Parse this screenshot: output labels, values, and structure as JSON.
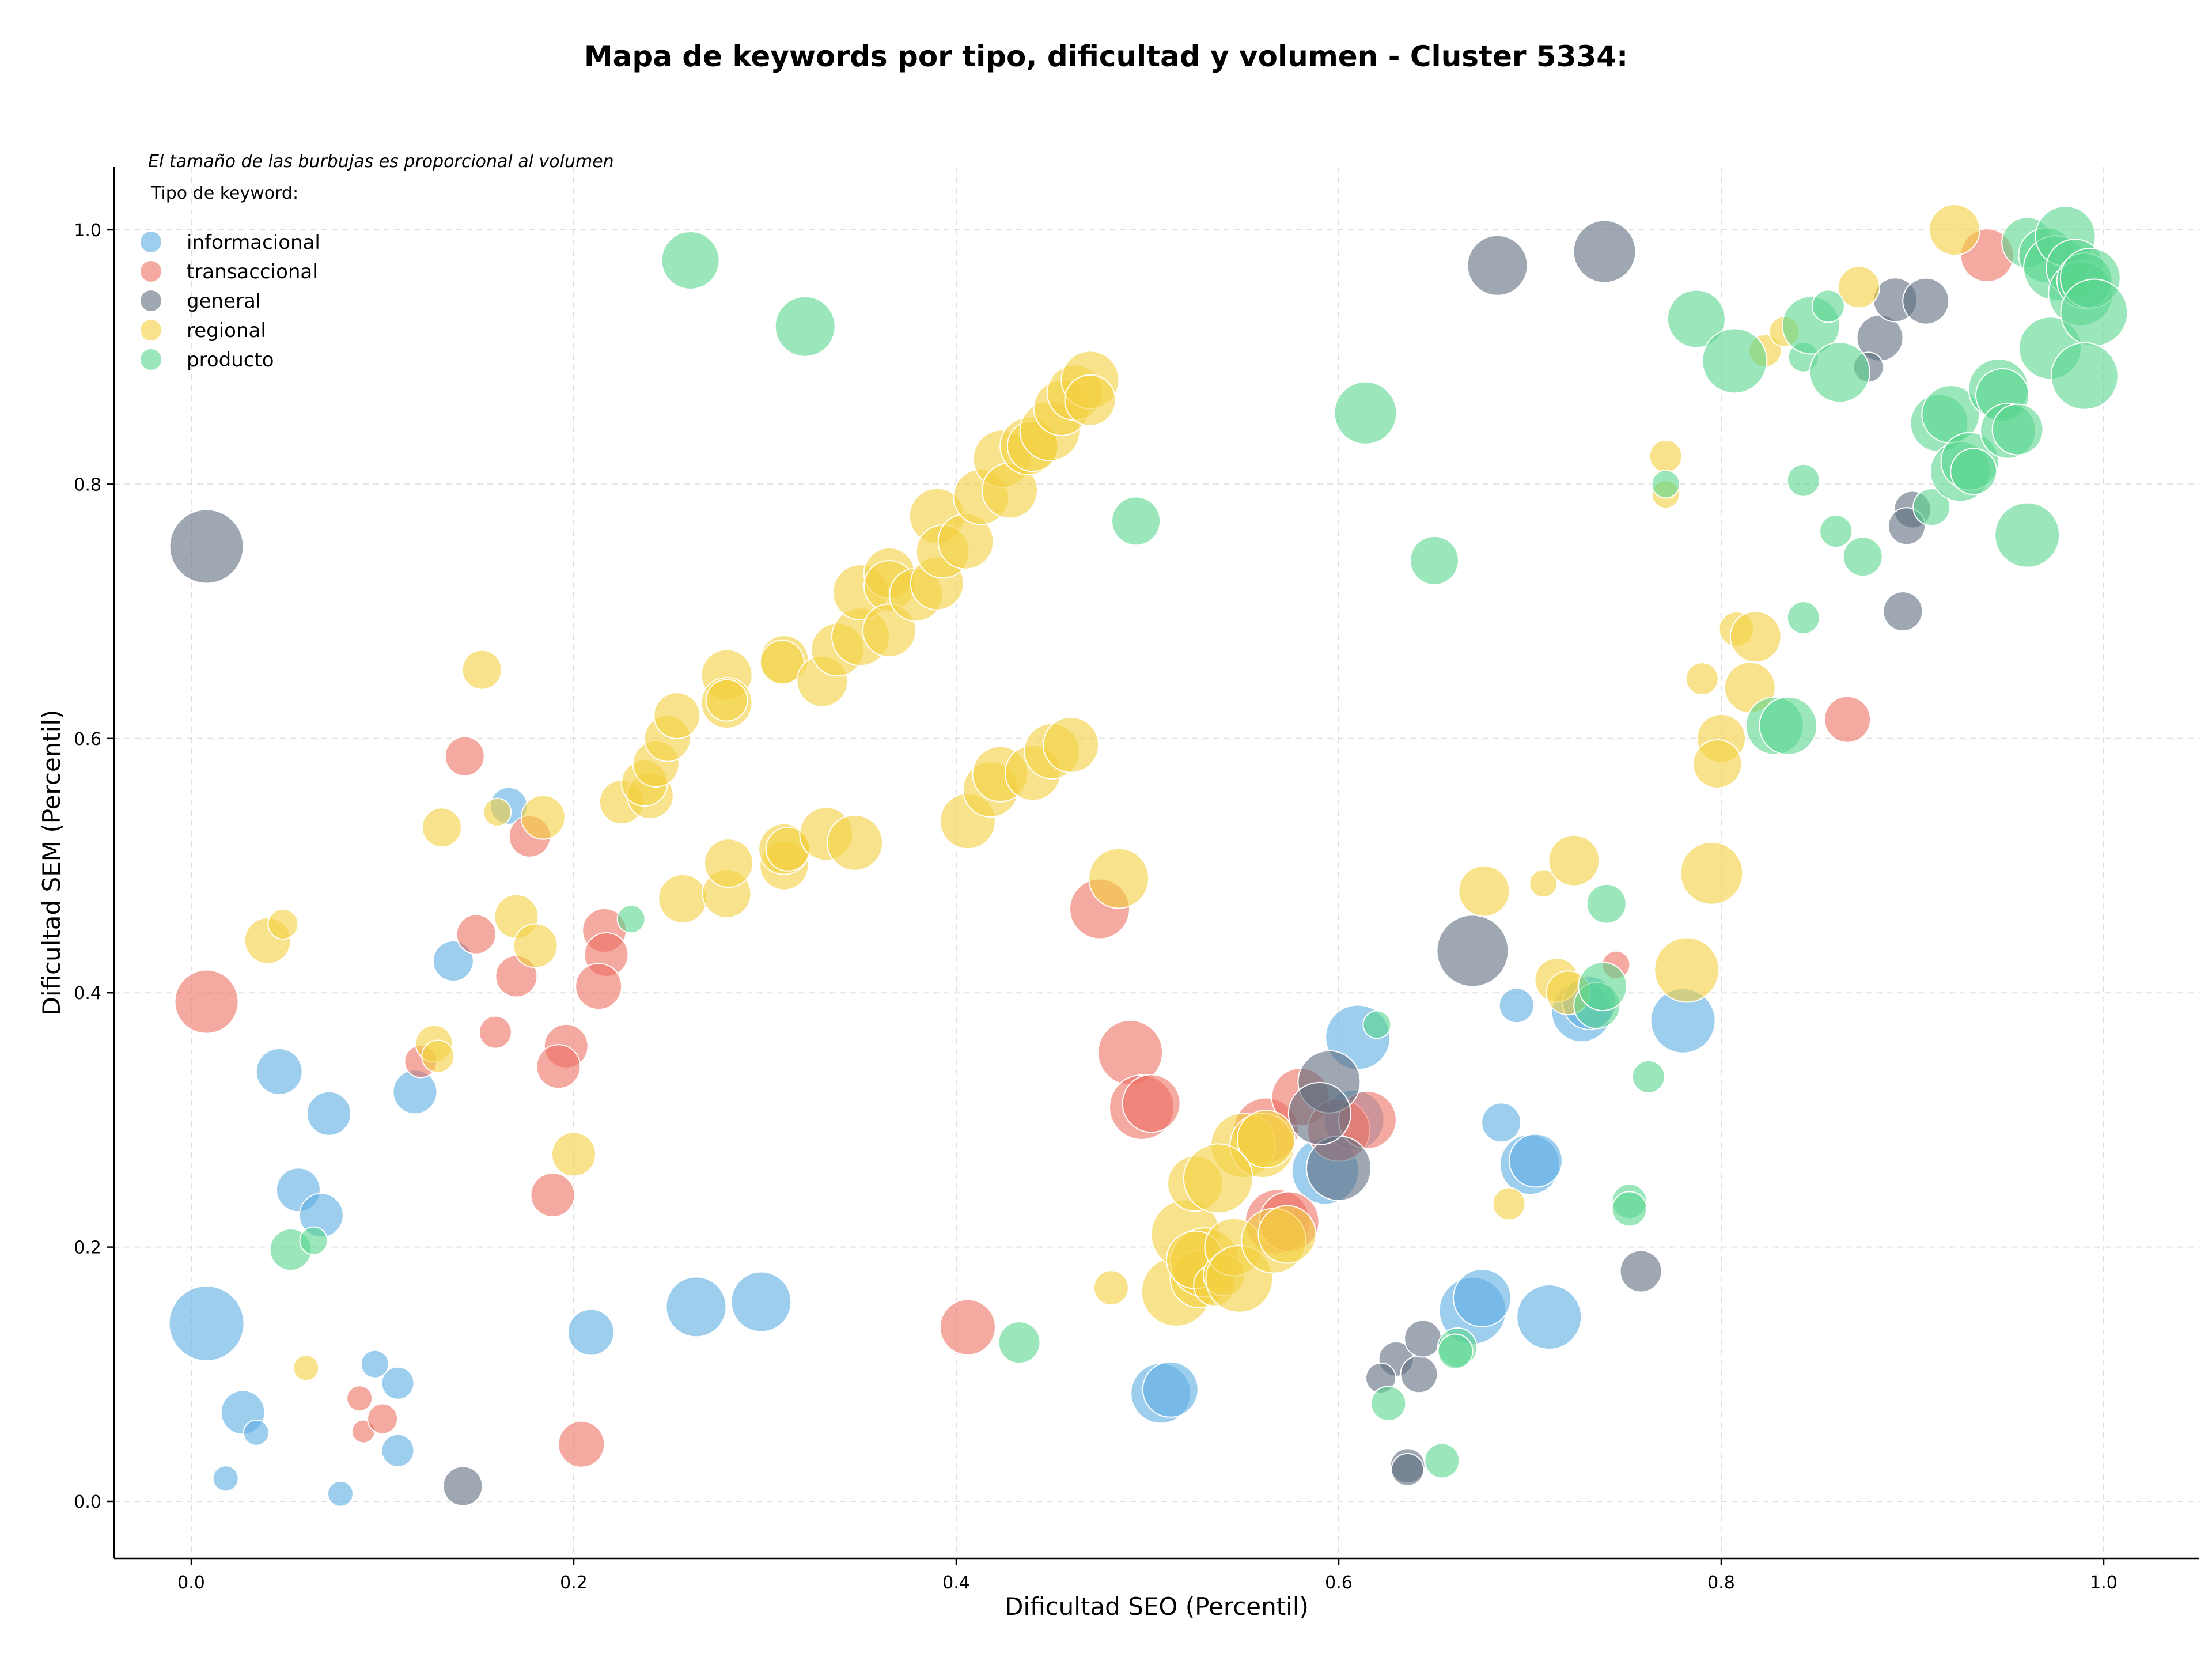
{
  "chart_data": {
    "type": "scatter",
    "title": "Mapa de keywords por tipo, dificultad y volumen - Cluster 5334:",
    "note": "El tamaño de las burbujas es proporcional al volumen",
    "xlabel": "Dificultad SEO (Percentil)",
    "ylabel": "Dificultad SEM (Percentil)",
    "xlim": [
      -0.04,
      1.05
    ],
    "ylim": [
      -0.04,
      1.05
    ],
    "xticks": [
      "0.0",
      "0.2",
      "0.4",
      "0.6",
      "0.8",
      "1.0"
    ],
    "yticks": [
      "0.0",
      "0.2",
      "0.4",
      "0.6",
      "0.8",
      "1.0"
    ],
    "grid": true,
    "legend": {
      "title": "Tipo de keyword:",
      "position": "top-left"
    },
    "series": [
      {
        "name": "informacional",
        "color": "#5DADE2",
        "points": [
          [
            0.008,
            0.14,
            65
          ],
          [
            0.027,
            0.07,
            38
          ],
          [
            0.034,
            0.054,
            22
          ],
          [
            0.018,
            0.018,
            22
          ],
          [
            0.046,
            0.338,
            40
          ],
          [
            0.072,
            0.305,
            38
          ],
          [
            0.056,
            0.245,
            38
          ],
          [
            0.068,
            0.225,
            38
          ],
          [
            0.096,
            0.108,
            24
          ],
          [
            0.108,
            0.093,
            28
          ],
          [
            0.108,
            0.04,
            28
          ],
          [
            0.078,
            0.006,
            22
          ],
          [
            0.117,
            0.322,
            38
          ],
          [
            0.137,
            0.425,
            35
          ],
          [
            0.166,
            0.547,
            32
          ],
          [
            0.209,
            0.133,
            40
          ],
          [
            0.264,
            0.153,
            52
          ],
          [
            0.298,
            0.157,
            52
          ],
          [
            0.507,
            0.085,
            52
          ],
          [
            0.512,
            0.088,
            48
          ],
          [
            0.61,
            0.365,
            56
          ],
          [
            0.685,
            0.298,
            34
          ],
          [
            0.693,
            0.39,
            30
          ],
          [
            0.7,
            0.265,
            52
          ],
          [
            0.703,
            0.268,
            46
          ],
          [
            0.727,
            0.385,
            52
          ],
          [
            0.731,
            0.392,
            46
          ],
          [
            0.71,
            0.145,
            56
          ],
          [
            0.67,
            0.15,
            58
          ],
          [
            0.675,
            0.16,
            50
          ],
          [
            0.78,
            0.378,
            56
          ],
          [
            0.593,
            0.26,
            58
          ],
          [
            0.608,
            0.3,
            52
          ]
        ]
      },
      {
        "name": "transaccional",
        "color": "#EC7063",
        "points": [
          [
            0.008,
            0.393,
            55
          ],
          [
            0.088,
            0.081,
            22
          ],
          [
            0.09,
            0.055,
            20
          ],
          [
            0.1,
            0.065,
            26
          ],
          [
            0.143,
            0.586,
            34
          ],
          [
            0.149,
            0.446,
            34
          ],
          [
            0.159,
            0.369,
            28
          ],
          [
            0.17,
            0.413,
            36
          ],
          [
            0.177,
            0.523,
            36
          ],
          [
            0.12,
            0.346,
            28
          ],
          [
            0.196,
            0.358,
            38
          ],
          [
            0.192,
            0.342,
            38
          ],
          [
            0.189,
            0.241,
            38
          ],
          [
            0.216,
            0.449,
            38
          ],
          [
            0.217,
            0.43,
            38
          ],
          [
            0.213,
            0.405,
            40
          ],
          [
            0.204,
            0.045,
            40
          ],
          [
            0.406,
            0.137,
            48
          ],
          [
            0.475,
            0.466,
            52
          ],
          [
            0.491,
            0.353,
            56
          ],
          [
            0.497,
            0.31,
            56
          ],
          [
            0.502,
            0.313,
            50
          ],
          [
            0.562,
            0.292,
            56
          ],
          [
            0.568,
            0.22,
            56
          ],
          [
            0.574,
            0.22,
            52
          ],
          [
            0.58,
            0.318,
            50
          ],
          [
            0.6,
            0.292,
            54
          ],
          [
            0.615,
            0.3,
            50
          ],
          [
            0.745,
            0.422,
            24
          ],
          [
            0.866,
            0.615,
            40
          ],
          [
            0.939,
            0.98,
            46
          ]
        ]
      },
      {
        "name": "general",
        "color": "#5D6D7E",
        "points": [
          [
            0.008,
            0.751,
            64
          ],
          [
            0.142,
            0.012,
            34
          ],
          [
            0.6,
            0.262,
            56
          ],
          [
            0.595,
            0.33,
            54
          ],
          [
            0.59,
            0.305,
            54
          ],
          [
            0.67,
            0.433,
            62
          ],
          [
            0.683,
            0.972,
            52
          ],
          [
            0.739,
            0.983,
            54
          ],
          [
            0.758,
            0.181,
            36
          ],
          [
            0.63,
            0.112,
            30
          ],
          [
            0.636,
            0.028,
            30
          ],
          [
            0.636,
            0.025,
            28
          ],
          [
            0.642,
            0.1,
            32
          ],
          [
            0.644,
            0.128,
            32
          ],
          [
            0.622,
            0.097,
            26
          ],
          [
            0.883,
            0.915,
            40
          ],
          [
            0.877,
            0.892,
            26
          ],
          [
            0.891,
            0.945,
            38
          ],
          [
            0.907,
            0.944,
            40
          ],
          [
            0.895,
            0.7,
            34
          ],
          [
            0.9,
            0.78,
            32
          ],
          [
            0.897,
            0.767,
            32
          ]
        ]
      },
      {
        "name": "regional",
        "color": "#F4D03F",
        "points": [
          [
            0.06,
            0.105,
            22
          ],
          [
            0.04,
            0.441,
            40
          ],
          [
            0.048,
            0.454,
            26
          ],
          [
            0.131,
            0.53,
            34
          ],
          [
            0.152,
            0.654,
            34
          ],
          [
            0.16,
            0.542,
            24
          ],
          [
            0.127,
            0.36,
            32
          ],
          [
            0.129,
            0.35,
            28
          ],
          [
            0.17,
            0.46,
            38
          ],
          [
            0.18,
            0.437,
            38
          ],
          [
            0.184,
            0.538,
            38
          ],
          [
            0.2,
            0.273,
            38
          ],
          [
            0.225,
            0.55,
            38
          ],
          [
            0.24,
            0.555,
            40
          ],
          [
            0.237,
            0.565,
            40
          ],
          [
            0.243,
            0.58,
            40
          ],
          [
            0.249,
            0.6,
            40
          ],
          [
            0.254,
            0.618,
            40
          ],
          [
            0.257,
            0.474,
            42
          ],
          [
            0.28,
            0.478,
            42
          ],
          [
            0.281,
            0.502,
            42
          ],
          [
            0.28,
            0.65,
            44
          ],
          [
            0.28,
            0.628,
            44
          ],
          [
            0.28,
            0.63,
            36
          ],
          [
            0.31,
            0.5,
            42
          ],
          [
            0.31,
            0.513,
            44
          ],
          [
            0.312,
            0.513,
            38
          ],
          [
            0.31,
            0.662,
            42
          ],
          [
            0.309,
            0.66,
            38
          ],
          [
            0.33,
            0.645,
            44
          ],
          [
            0.332,
            0.525,
            46
          ],
          [
            0.338,
            0.67,
            46
          ],
          [
            0.347,
            0.518,
            48
          ],
          [
            0.35,
            0.68,
            50
          ],
          [
            0.35,
            0.715,
            48
          ],
          [
            0.365,
            0.73,
            44
          ],
          [
            0.365,
            0.72,
            44
          ],
          [
            0.365,
            0.685,
            46
          ],
          [
            0.379,
            0.713,
            46
          ],
          [
            0.39,
            0.775,
            48
          ],
          [
            0.39,
            0.722,
            46
          ],
          [
            0.393,
            0.747,
            46
          ],
          [
            0.405,
            0.755,
            48
          ],
          [
            0.413,
            0.79,
            48
          ],
          [
            0.424,
            0.82,
            50
          ],
          [
            0.428,
            0.795,
            48
          ],
          [
            0.438,
            0.83,
            50
          ],
          [
            0.44,
            0.83,
            44
          ],
          [
            0.449,
            0.842,
            52
          ],
          [
            0.455,
            0.86,
            48
          ],
          [
            0.462,
            0.872,
            48
          ],
          [
            0.47,
            0.882,
            50
          ],
          [
            0.47,
            0.866,
            44
          ],
          [
            0.406,
            0.535,
            48
          ],
          [
            0.418,
            0.56,
            48
          ],
          [
            0.423,
            0.572,
            48
          ],
          [
            0.44,
            0.573,
            48
          ],
          [
            0.45,
            0.59,
            48
          ],
          [
            0.46,
            0.595,
            48
          ],
          [
            0.481,
            0.168,
            30
          ],
          [
            0.485,
            0.49,
            52
          ],
          [
            0.515,
            0.165,
            60
          ],
          [
            0.52,
            0.21,
            60
          ],
          [
            0.527,
            0.175,
            50
          ],
          [
            0.53,
            0.188,
            60
          ],
          [
            0.525,
            0.19,
            50
          ],
          [
            0.535,
            0.17,
            36
          ],
          [
            0.54,
            0.178,
            36
          ],
          [
            0.545,
            0.2,
            50
          ],
          [
            0.548,
            0.175,
            58
          ],
          [
            0.55,
            0.28,
            56
          ],
          [
            0.56,
            0.28,
            56
          ],
          [
            0.562,
            0.285,
            50
          ],
          [
            0.566,
            0.205,
            56
          ],
          [
            0.573,
            0.21,
            50
          ],
          [
            0.525,
            0.25,
            48
          ],
          [
            0.537,
            0.254,
            60
          ],
          [
            0.689,
            0.234,
            28
          ],
          [
            0.707,
            0.486,
            24
          ],
          [
            0.714,
            0.41,
            38
          ],
          [
            0.72,
            0.4,
            38
          ],
          [
            0.723,
            0.504,
            44
          ],
          [
            0.676,
            0.48,
            44
          ],
          [
            0.771,
            0.822,
            28
          ],
          [
            0.771,
            0.792,
            24
          ],
          [
            0.782,
            0.418,
            56
          ],
          [
            0.795,
            0.494,
            54
          ],
          [
            0.79,
            0.647,
            28
          ],
          [
            0.8,
            0.6,
            42
          ],
          [
            0.798,
            0.58,
            42
          ],
          [
            0.808,
            0.686,
            30
          ],
          [
            0.815,
            0.64,
            44
          ],
          [
            0.818,
            0.68,
            44
          ],
          [
            0.823,
            0.905,
            28
          ],
          [
            0.833,
            0.92,
            26
          ],
          [
            0.872,
            0.955,
            36
          ],
          [
            0.922,
            1.0,
            44
          ]
        ]
      },
      {
        "name": "producto",
        "color": "#58D68D",
        "points": [
          [
            0.052,
            0.198,
            36
          ],
          [
            0.064,
            0.205,
            24
          ],
          [
            0.23,
            0.458,
            24
          ],
          [
            0.261,
            0.976,
            50
          ],
          [
            0.321,
            0.924,
            52
          ],
          [
            0.433,
            0.125,
            36
          ],
          [
            0.494,
            0.771,
            42
          ],
          [
            0.614,
            0.856,
            54
          ],
          [
            0.65,
            0.74,
            42
          ],
          [
            0.62,
            0.375,
            24
          ],
          [
            0.626,
            0.077,
            30
          ],
          [
            0.654,
            0.032,
            30
          ],
          [
            0.662,
            0.121,
            34
          ],
          [
            0.661,
            0.118,
            30
          ],
          [
            0.74,
            0.47,
            34
          ],
          [
            0.735,
            0.39,
            40
          ],
          [
            0.738,
            0.405,
            42
          ],
          [
            0.752,
            0.236,
            30
          ],
          [
            0.752,
            0.23,
            30
          ],
          [
            0.762,
            0.334,
            28
          ],
          [
            0.771,
            0.8,
            24
          ],
          [
            0.787,
            0.93,
            50
          ],
          [
            0.807,
            0.897,
            56
          ],
          [
            0.828,
            0.61,
            50
          ],
          [
            0.835,
            0.61,
            50
          ],
          [
            0.843,
            0.803,
            28
          ],
          [
            0.843,
            0.695,
            28
          ],
          [
            0.843,
            0.9,
            26
          ],
          [
            0.847,
            0.925,
            50
          ],
          [
            0.856,
            0.94,
            28
          ],
          [
            0.862,
            0.888,
            52
          ],
          [
            0.86,
            0.763,
            28
          ],
          [
            0.874,
            0.743,
            34
          ],
          [
            0.91,
            0.782,
            32
          ],
          [
            0.914,
            0.848,
            50
          ],
          [
            0.92,
            0.855,
            50
          ],
          [
            0.925,
            0.81,
            52
          ],
          [
            0.93,
            0.818,
            50
          ],
          [
            0.932,
            0.81,
            40
          ],
          [
            0.945,
            0.875,
            52
          ],
          [
            0.947,
            0.87,
            46
          ],
          [
            0.95,
            0.842,
            48
          ],
          [
            0.955,
            0.843,
            44
          ],
          [
            0.96,
            0.76,
            56
          ],
          [
            0.96,
            0.99,
            44
          ],
          [
            0.97,
            0.98,
            48
          ],
          [
            0.972,
            0.907,
            54
          ],
          [
            0.975,
            0.97,
            56
          ],
          [
            0.98,
            0.995,
            52
          ],
          [
            0.985,
            0.97,
            50
          ],
          [
            0.988,
            0.95,
            56
          ],
          [
            0.99,
            0.96,
            48
          ],
          [
            0.993,
            0.962,
            52
          ],
          [
            0.995,
            0.935,
            58
          ],
          [
            0.99,
            0.885,
            58
          ]
        ]
      }
    ]
  }
}
